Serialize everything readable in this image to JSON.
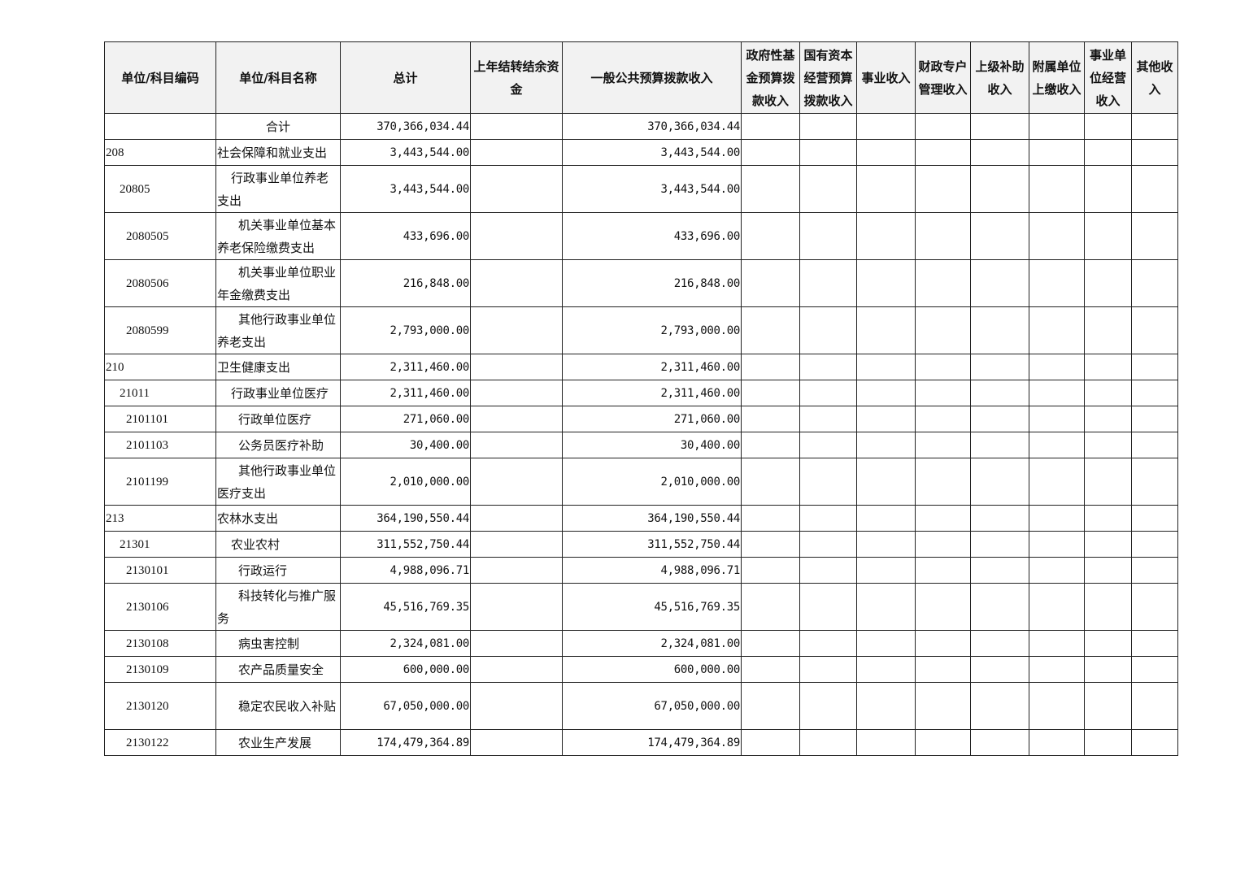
{
  "headers": [
    "单位/科目编码",
    "单位/科目名称",
    "总计",
    "上年结转结余资金",
    "一般公共预算拨款收入",
    "政府性基金预算拨款收入",
    "国有资本经营预算拨款收入",
    "事业收入",
    "财政专户管理收入",
    "上级补助收入",
    "附属单位上缴收入",
    "事业单位经营收入",
    "其他收入"
  ],
  "rows": [
    {
      "code": "",
      "name": "合计",
      "level": 0,
      "total": "370,366,034.44",
      "general": "370,366,034.44"
    },
    {
      "code": "208",
      "name": "社会保障和就业支出",
      "level": 1,
      "total": "3,443,544.00",
      "general": "3,443,544.00"
    },
    {
      "code": "20805",
      "name": "行政事业单位养老支出",
      "level": 2,
      "total": "3,443,544.00",
      "general": "3,443,544.00"
    },
    {
      "code": "2080505",
      "name": "机关事业单位基本养老保险缴费支出",
      "level": 3,
      "total": "433,696.00",
      "general": "433,696.00"
    },
    {
      "code": "2080506",
      "name": "机关事业单位职业年金缴费支出",
      "level": 3,
      "total": "216,848.00",
      "general": "216,848.00"
    },
    {
      "code": "2080599",
      "name": "其他行政事业单位养老支出",
      "level": 3,
      "total": "2,793,000.00",
      "general": "2,793,000.00"
    },
    {
      "code": "210",
      "name": "卫生健康支出",
      "level": 1,
      "total": "2,311,460.00",
      "general": "2,311,460.00"
    },
    {
      "code": "21011",
      "name": "行政事业单位医疗",
      "level": 2,
      "total": "2,311,460.00",
      "general": "2,311,460.00"
    },
    {
      "code": "2101101",
      "name": "行政单位医疗",
      "level": 3,
      "total": "271,060.00",
      "general": "271,060.00"
    },
    {
      "code": "2101103",
      "name": "公务员医疗补助",
      "level": 3,
      "total": "30,400.00",
      "general": "30,400.00"
    },
    {
      "code": "2101199",
      "name": "其他行政事业单位医疗支出",
      "level": 3,
      "total": "2,010,000.00",
      "general": "2,010,000.00"
    },
    {
      "code": "213",
      "name": "农林水支出",
      "level": 1,
      "total": "364,190,550.44",
      "general": "364,190,550.44"
    },
    {
      "code": "21301",
      "name": "农业农村",
      "level": 2,
      "total": "311,552,750.44",
      "general": "311,552,750.44"
    },
    {
      "code": "2130101",
      "name": "行政运行",
      "level": 3,
      "total": "4,988,096.71",
      "general": "4,988,096.71"
    },
    {
      "code": "2130106",
      "name": "科技转化与推广服务",
      "level": 3,
      "total": "45,516,769.35",
      "general": "45,516,769.35"
    },
    {
      "code": "2130108",
      "name": "病虫害控制",
      "level": 3,
      "total": "2,324,081.00",
      "general": "2,324,081.00"
    },
    {
      "code": "2130109",
      "name": "农产品质量安全",
      "level": 3,
      "total": "600,000.00",
      "general": "600,000.00"
    },
    {
      "code": "2130120",
      "name": "稳定农民收入补贴",
      "level": 3,
      "total": "67,050,000.00",
      "general": "67,050,000.00"
    },
    {
      "code": "2130122",
      "name": "农业生产发展",
      "level": 3,
      "total": "174,479,364.89",
      "general": "174,479,364.89"
    }
  ]
}
